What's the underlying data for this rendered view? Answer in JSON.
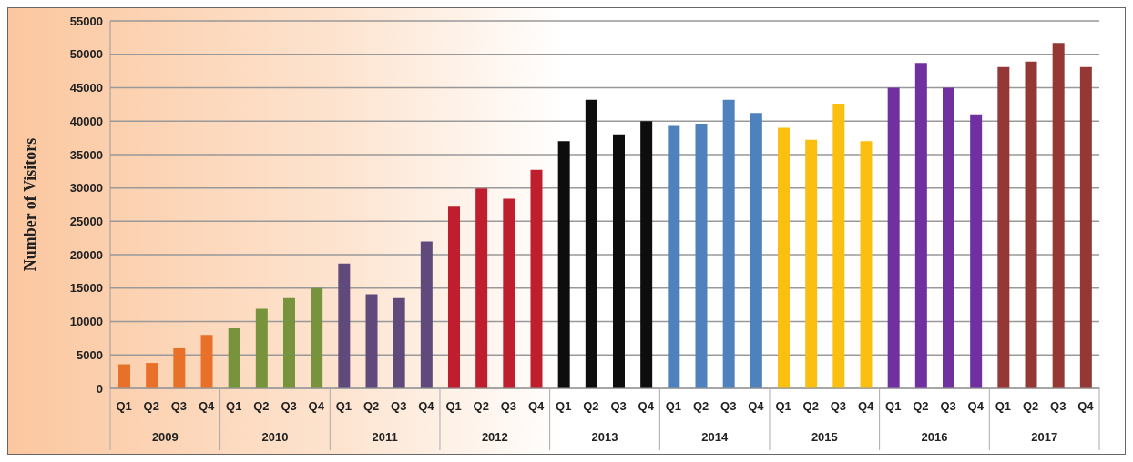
{
  "chart_data": {
    "type": "bar",
    "ylabel": "Number of Visitors",
    "categories": [
      "Q1",
      "Q2",
      "Q3",
      "Q4",
      "Q1",
      "Q2",
      "Q3",
      "Q4",
      "Q1",
      "Q2",
      "Q3",
      "Q4",
      "Q1",
      "Q2",
      "Q3",
      "Q4",
      "Q1",
      "Q2",
      "Q3",
      "Q4",
      "Q1",
      "Q2",
      "Q3",
      "Q4",
      "Q1",
      "Q2",
      "Q3",
      "Q4",
      "Q1",
      "Q2",
      "Q3",
      "Q4",
      "Q1",
      "Q2",
      "Q3",
      "Q4"
    ],
    "values": [
      3600,
      3800,
      6000,
      8000,
      9000,
      11900,
      13500,
      15000,
      18700,
      14100,
      13500,
      22000,
      27200,
      29900,
      28400,
      32700,
      37000,
      43200,
      38000,
      40000,
      39400,
      39600,
      43200,
      41200,
      39000,
      37200,
      42600,
      37000,
      45000,
      48700,
      45000,
      41000,
      48100,
      48900,
      51700,
      48100
    ],
    "colors": [
      "#e87028",
      "#e87028",
      "#e87028",
      "#e87028",
      "#77933c",
      "#77933c",
      "#77933c",
      "#77933c",
      "#604a7b",
      "#604a7b",
      "#604a7b",
      "#604a7b",
      "#be1e2d",
      "#be1e2d",
      "#be1e2d",
      "#be1e2d",
      "#0d0d0d",
      "#0d0d0d",
      "#0d0d0d",
      "#0d0d0d",
      "#4f81bd",
      "#4f81bd",
      "#4f81bd",
      "#4f81bd",
      "#fbbf12",
      "#fbbf12",
      "#fbbf12",
      "#fbbf12",
      "#7030a0",
      "#7030a0",
      "#7030a0",
      "#7030a0",
      "#953735",
      "#953735",
      "#953735",
      "#953735"
    ],
    "annotations": [
      "2009",
      "2010",
      "2011",
      "2012",
      "2013",
      "2014",
      "2015",
      "2016",
      "2017"
    ],
    "ylim": [
      0,
      55000
    ],
    "yticks": [
      0,
      5000,
      10000,
      15000,
      20000,
      25000,
      30000,
      35000,
      40000,
      45000,
      50000,
      55000
    ],
    "grid": "y"
  }
}
